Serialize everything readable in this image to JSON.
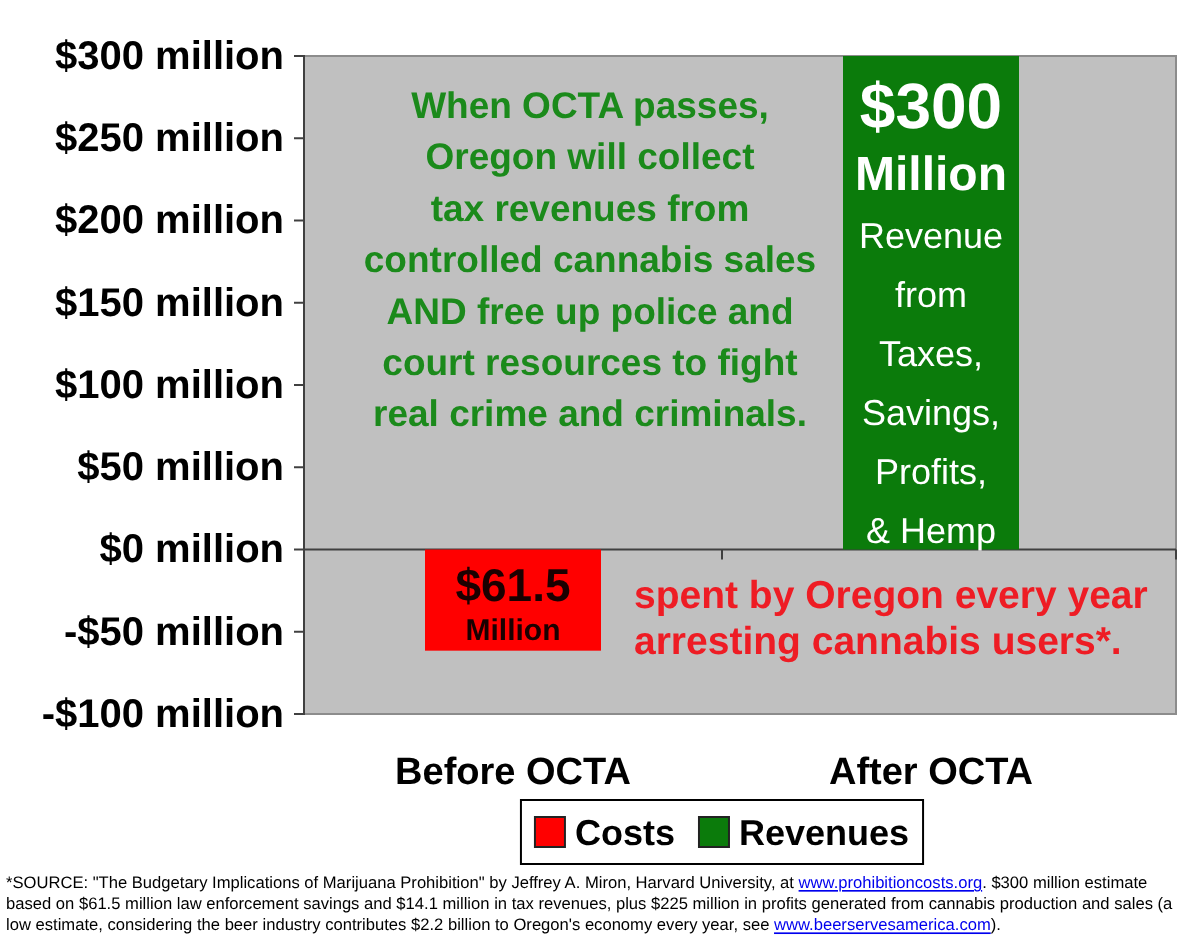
{
  "chart_data": {
    "type": "bar",
    "categories": [
      "Before OCTA",
      "After OCTA"
    ],
    "stacked": true,
    "series": [
      {
        "name": "Costs",
        "color": "#ff0000",
        "values": [
          -61.5,
          null
        ]
      },
      {
        "name": "Revenues",
        "color": "#0b7b0b",
        "values": [
          null,
          300
        ],
        "value_labels": [
          null,
          "$300 Million"
        ]
      }
    ],
    "ylim": [
      -100,
      300
    ],
    "yticks": [
      {
        "value": -100,
        "label": "-$100 million"
      },
      {
        "value": -50,
        "label": "-$50 million"
      },
      {
        "value": 0,
        "label": "$0 million"
      },
      {
        "value": 50,
        "label": "$50 million"
      },
      {
        "value": 100,
        "label": "$100 million"
      },
      {
        "value": 150,
        "label": "$150 million"
      },
      {
        "value": 200,
        "label": "$200 million"
      },
      {
        "value": 250,
        "label": "$250 million"
      },
      {
        "value": 300,
        "label": "$300 million"
      }
    ],
    "legend": "bottom",
    "annotations": [
      "When OCTA passes,\nOregon will collect\ntax revenues from\ncontrolled cannabis sales\nAND free up police and\ncourt resources to fight\nreal crime and criminals.",
      "Revenue\nfrom\nTaxes,\nSavings,\nProfits,\n& Hemp",
      "$61.5\nMillion",
      "spent by Oregon every year\narresting cannabis users*.",
      "*SOURCE: \"The Budgetary Implications of Marijuana Prohibition\" by Jeffrey A. Miron, Harvard University, at www.prohibitioncosts.org. $300 million estimate based on $61.5 million law enforcement savings and $14.1 million in tax revenues, plus $225 million in profits generated from cannabis production and sales (a low estimate, considering the beer industry contributes $2.2 billion to Oregon's economy every year, see www.beerservesamerica.com)."
    ]
  }
}
